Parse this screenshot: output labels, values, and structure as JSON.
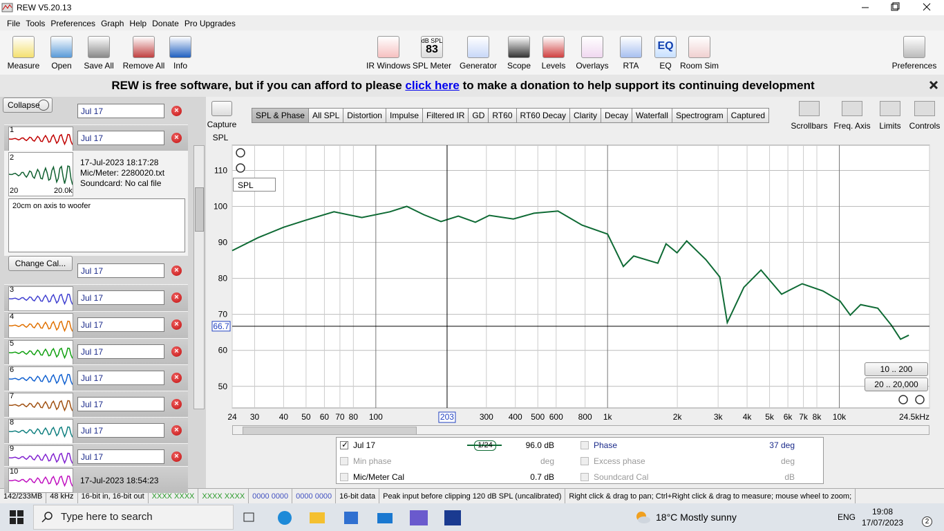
{
  "window": {
    "title": "REW V5.20.13"
  },
  "menu": [
    "File",
    "Tools",
    "Preferences",
    "Graph",
    "Help",
    "Donate",
    "Pro Upgrades"
  ],
  "toolbar_left": [
    "Measure",
    "Open",
    "Save All",
    "Remove All",
    "Info"
  ],
  "toolbar_center": [
    "IR Windows",
    "SPL Meter",
    "Generator",
    "Scope",
    "Levels",
    "Overlays",
    "RTA",
    "EQ",
    "Room Sim"
  ],
  "spl_meter_icon": {
    "unit": "dB SPL",
    "value": "83"
  },
  "eq_icon": "EQ",
  "toolbar_right": [
    "Preferences"
  ],
  "banner": {
    "before": "REW is free software, but if you can afford to please",
    "link": "click here",
    "after": "to make a donation to help support its continuing development"
  },
  "panel": {
    "collapse": "Collapse",
    "current_name": "Jul 17",
    "first": {
      "index": "1",
      "name": "Jul 17",
      "color": "#c00000"
    },
    "details": {
      "index": "2",
      "date": "17-Jul-2023 18:17:28",
      "mic": "Mic/Meter: 2280020.txt",
      "soundcard": "Soundcard: No cal file",
      "thumb_min": "20",
      "thumb_max": "20.0k",
      "notes": "20cm on axis to woofer",
      "change_cal": "Change Cal...",
      "name": "Jul 17"
    },
    "measurements": [
      {
        "index": "3",
        "name": "Jul 17",
        "color": "#4040d0"
      },
      {
        "index": "4",
        "name": "Jul 17",
        "color": "#e07000"
      },
      {
        "index": "5",
        "name": "Jul 17",
        "color": "#10a010"
      },
      {
        "index": "6",
        "name": "Jul 17",
        "color": "#1060d0"
      },
      {
        "index": "7",
        "name": "Jul 17",
        "color": "#a05010"
      },
      {
        "index": "8",
        "name": "Jul 17",
        "color": "#108080"
      },
      {
        "index": "9",
        "name": "Jul 17",
        "color": "#8020d0"
      }
    ],
    "last": {
      "index": "10",
      "date": "17-Jul-2023 18:54:23",
      "color": "#c010c0"
    }
  },
  "capture": "Capture",
  "tabs": [
    "SPL & Phase",
    "All SPL",
    "Distortion",
    "Impulse",
    "Filtered IR",
    "GD",
    "RT60",
    "RT60 Decay",
    "Clarity",
    "Decay",
    "Waterfall",
    "Spectrogram",
    "Captured"
  ],
  "active_tab": "SPL & Phase",
  "graph_tools": [
    "Scrollbars",
    "Freq. Axis",
    "Limits",
    "Controls"
  ],
  "trace_select": "SPL",
  "range_buttons": [
    "10 .. 200",
    "20 .. 20,000"
  ],
  "chart_data": {
    "type": "line",
    "y_label": "SPL",
    "x": [
      24,
      31,
      40,
      50,
      66,
      87,
      115,
      136,
      161,
      191,
      227,
      269,
      309,
      392,
      481,
      611,
      776,
      1000,
      1170,
      1297,
      1648,
      1788,
      1995,
      2195,
      2655,
      3048,
      3285,
      3873,
      4592,
      5637,
      6918,
      8492,
      10070,
      11150,
      12360,
      14660,
      16820,
      18370,
      19950
    ],
    "series": [
      {
        "name": "Jul 17",
        "color": "#0e6a34",
        "values": [
          87.7,
          91.3,
          94.2,
          96.2,
          98.5,
          96.9,
          98.5,
          100,
          97.7,
          95.8,
          97.3,
          95.6,
          97.5,
          96.5,
          98.1,
          98.7,
          94.8,
          92.3,
          83.3,
          86.2,
          84.2,
          89.6,
          87.1,
          90.4,
          85.2,
          80.4,
          67.7,
          77.5,
          82.3,
          75.6,
          78.5,
          76.5,
          73.7,
          69.8,
          72.7,
          71.7,
          66.9,
          63.1,
          64.2
        ]
      }
    ],
    "xlim": [
      24,
      24500
    ],
    "ylim": [
      44,
      117
    ],
    "log_x": true,
    "grid": true,
    "xticks": [
      24,
      30,
      40,
      50,
      60,
      70,
      80,
      100,
      300,
      400,
      500,
      600,
      800,
      {
        "value": 1000,
        "label": "1k"
      },
      {
        "value": 2000,
        "label": "2k"
      },
      {
        "value": 3000,
        "label": "3k"
      },
      {
        "value": 4000,
        "label": "4k"
      },
      {
        "value": 5000,
        "label": "5k"
      },
      {
        "value": 6000,
        "label": "6k"
      },
      {
        "value": 7000,
        "label": "7k"
      },
      {
        "value": 8000,
        "label": "8k"
      },
      {
        "value": 10000,
        "label": "10k"
      },
      {
        "value": 24500,
        "label": "24.5kHz"
      }
    ],
    "yticks": [
      50,
      60,
      70,
      80,
      90,
      100,
      110
    ],
    "cursor": {
      "x": 203,
      "y": 66.7
    }
  },
  "legend_table": {
    "smoothing": "1/24",
    "row1": {
      "value": "96.0 dB",
      "label2": "Phase",
      "value2": "37 deg"
    },
    "row2": {
      "label": "Min phase",
      "value": "deg",
      "label2": "Excess phase",
      "value2": "deg"
    },
    "row3": {
      "label": "Mic/Meter Cal",
      "value": "0.7 dB",
      "label2": "Soundcard Cal",
      "value2": "dB"
    }
  },
  "status": [
    "142/233MB",
    "48 kHz",
    "16-bit in, 16-bit out",
    "XXXX XXXX",
    "XXXX XXXX",
    "0000 0000",
    "0000 0000",
    "16-bit data",
    "Peak input before clipping 120 dB SPL (uncalibrated)",
    "Right click & drag to pan; Ctrl+Right click & drag to measure; mouse wheel to zoom;"
  ],
  "taskbar": {
    "search": "Type here to search",
    "weather": "18°C  Mostly sunny",
    "lang": "ENG",
    "time": "19:08",
    "date": "17/07/2023",
    "notifications": "2"
  }
}
